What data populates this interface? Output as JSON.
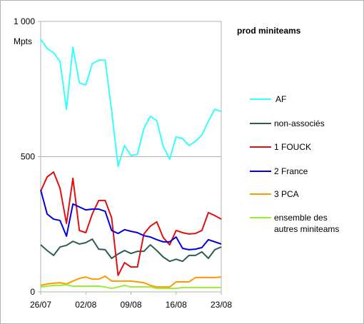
{
  "chart_data": {
    "type": "line",
    "title": "prod miniteams",
    "y_label": "Mpts",
    "categories": [
      "26/07",
      null,
      null,
      null,
      null,
      null,
      null,
      "02/08",
      null,
      null,
      null,
      null,
      null,
      null,
      "09/08",
      null,
      null,
      null,
      null,
      null,
      null,
      "16/08",
      null,
      null,
      null,
      null,
      null,
      null,
      "23/08"
    ],
    "ylim": [
      0,
      1000
    ],
    "yticks": [
      0,
      500,
      {
        "value": 1000,
        "label": "1 000"
      }
    ],
    "grid": true,
    "series": [
      {
        "name": "AF",
        "color": "#33ffff",
        "values": [
          934,
          900,
          884,
          852,
          675,
          905,
          773,
          765,
          844,
          857,
          857,
          670,
          464,
          541,
          504,
          509,
          604,
          649,
          633,
          538,
          491,
          573,
          567,
          541,
          557,
          580,
          631,
          675,
          667
        ]
      },
      {
        "name": "non-associés",
        "color": "#2f5b57",
        "values": [
          174,
          153,
          135,
          166,
          172,
          187,
          177,
          182,
          195,
          158,
          156,
          124,
          140,
          153,
          142,
          150,
          150,
          174,
          153,
          129,
          113,
          121,
          113,
          135,
          135,
          148,
          124,
          156,
          166
        ]
      },
      {
        "name": "1 FOUCK",
        "color": "#e01010",
        "values": [
          372,
          425,
          443,
          383,
          253,
          420,
          227,
          219,
          288,
          338,
          338,
          274,
          61,
          108,
          92,
          92,
          214,
          243,
          259,
          201,
          174,
          227,
          219,
          214,
          216,
          227,
          293,
          282,
          269
        ]
      },
      {
        "name": "2 France",
        "color": "#0000e0",
        "values": [
          377,
          288,
          269,
          264,
          206,
          325,
          314,
          303,
          306,
          306,
          298,
          227,
          216,
          230,
          224,
          219,
          208,
          203,
          193,
          185,
          185,
          203,
          161,
          156,
          158,
          164,
          193,
          185,
          177
        ]
      },
      {
        "name": "3 PCA",
        "color": "#ff9900",
        "values": [
          24,
          29,
          32,
          34,
          29,
          40,
          50,
          55,
          47,
          47,
          58,
          40,
          40,
          40,
          40,
          37,
          34,
          24,
          18,
          18,
          18,
          37,
          37,
          37,
          53,
          53,
          53,
          53,
          55
        ]
      },
      {
        "name": "ensemble des autres miniteams",
        "color": "#99ee33",
        "values": [
          18,
          21,
          24,
          24,
          26,
          21,
          21,
          21,
          21,
          21,
          18,
          13,
          18,
          24,
          18,
          18,
          18,
          18,
          13,
          13,
          13,
          13,
          16,
          16,
          16,
          16,
          16,
          16,
          16
        ]
      }
    ]
  }
}
